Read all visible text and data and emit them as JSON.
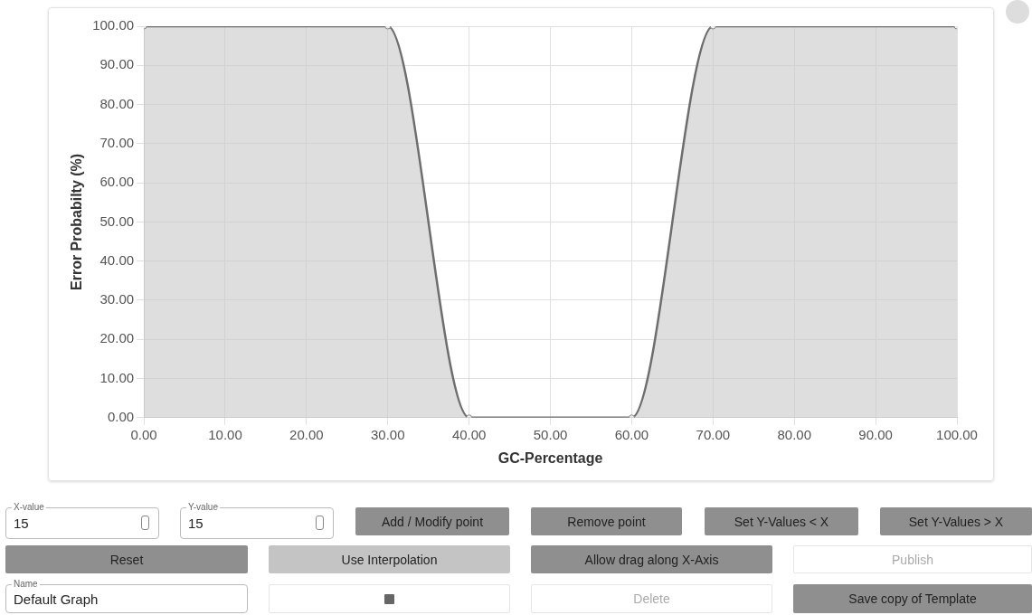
{
  "chart_data": {
    "type": "area",
    "xlabel": "GC-Percentage",
    "ylabel": "Error Probabilty (%)",
    "x": [
      0,
      30,
      40,
      60,
      70,
      100
    ],
    "series": [
      {
        "color": "#6e6e6e",
        "values": [
          100,
          100,
          0,
          0,
          100,
          100
        ]
      }
    ],
    "xlim": [
      0,
      100
    ],
    "xticks": [
      {
        "value": 0,
        "label": "0.00"
      },
      {
        "value": 10,
        "label": "10.00"
      },
      {
        "value": 20,
        "label": "20.00"
      },
      {
        "value": 30,
        "label": "30.00"
      },
      {
        "value": 40,
        "label": "40.00"
      },
      {
        "value": 50,
        "label": "50.00"
      },
      {
        "value": 60,
        "label": "60.00"
      },
      {
        "value": 70,
        "label": "70.00"
      },
      {
        "value": 80,
        "label": "80.00"
      },
      {
        "value": 90,
        "label": "90.00"
      },
      {
        "value": 100,
        "label": "100.00"
      }
    ],
    "ylim": [
      0,
      100
    ],
    "yticks": [
      {
        "value": 0,
        "label": "0.00"
      },
      {
        "value": 10,
        "label": "10.00"
      },
      {
        "value": 20,
        "label": "20.00"
      },
      {
        "value": 30,
        "label": "30.00"
      },
      {
        "value": 40,
        "label": "40.00"
      },
      {
        "value": 50,
        "label": "50.00"
      },
      {
        "value": 60,
        "label": "60.00"
      },
      {
        "value": 70,
        "label": "70.00"
      },
      {
        "value": 80,
        "label": "80.00"
      },
      {
        "value": 90,
        "label": "90.00"
      },
      {
        "value": 100,
        "label": "100.00"
      }
    ],
    "grid": true,
    "marker": "circle",
    "line_style": "solid",
    "legend": false,
    "annotations": [
      "X-value",
      "15",
      "Y-value",
      "15",
      "Add / Modify point",
      "Remove point",
      "Set Y-Values < X",
      "Set Y-Values > X",
      "Reset",
      "Use Interpolation",
      "Allow drag along X-Axis",
      "Publish",
      "Name",
      "Default Graph",
      "Delete",
      "Save copy of Template"
    ]
  }
}
